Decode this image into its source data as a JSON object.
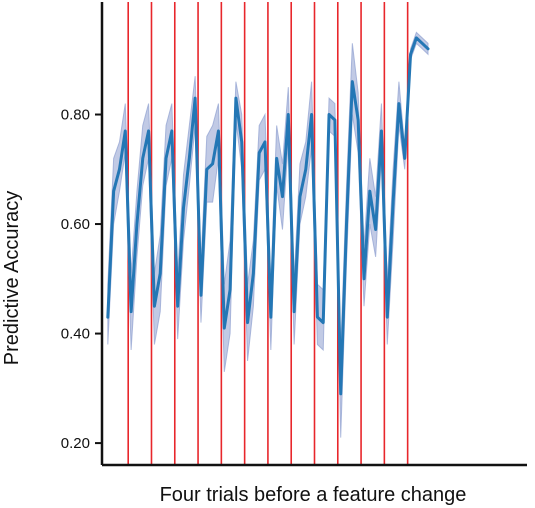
{
  "chart_data": {
    "type": "line",
    "title": "",
    "xlabel": "Four trials before a feature change",
    "ylabel": "Predictive  Accuracy",
    "ylim": [
      0.16,
      1.0
    ],
    "yticks": [
      {
        "value": 0.2,
        "label": "0.20"
      },
      {
        "value": 0.4,
        "label": "0.40"
      },
      {
        "value": 0.6,
        "label": "0.60"
      },
      {
        "value": 0.8,
        "label": "0.80"
      }
    ],
    "xlim": [
      -1,
      72
    ],
    "grid": false,
    "legend": "none",
    "colors": {
      "line": "#2477b5",
      "band": "#8e9fd0",
      "change": "#e8262b",
      "axis": "#111111"
    },
    "change_points": [
      3,
      7,
      11,
      15,
      19,
      23,
      27,
      31,
      35,
      39,
      43,
      47,
      51
    ],
    "series": [
      {
        "x": [
          0,
          1,
          2,
          3,
          4,
          5,
          6,
          7,
          8,
          9,
          10,
          11,
          12,
          13,
          14,
          15,
          16,
          17,
          18,
          19,
          20,
          21,
          22,
          23,
          24,
          25,
          26,
          27,
          28,
          29,
          30,
          31,
          32,
          33,
          34,
          35,
          36,
          37,
          38,
          39,
          40,
          41,
          42,
          43,
          44,
          45,
          46,
          47,
          48,
          49,
          50,
          51,
          52,
          53,
          54,
          55
        ],
        "values": [
          0.43,
          0.66,
          0.7,
          0.77,
          0.44,
          0.6,
          0.72,
          0.77,
          0.45,
          0.51,
          0.72,
          0.77,
          0.45,
          0.63,
          0.72,
          0.83,
          0.47,
          0.7,
          0.71,
          0.77,
          0.41,
          0.48,
          0.83,
          0.75,
          0.42,
          0.51,
          0.73,
          0.75,
          0.43,
          0.72,
          0.65,
          0.8,
          0.44,
          0.65,
          0.7,
          0.8,
          0.43,
          0.42,
          0.8,
          0.79,
          0.29,
          0.6,
          0.86,
          0.79,
          0.5,
          0.66,
          0.59,
          0.77,
          0.43,
          0.64,
          0.82,
          0.72,
          0.91,
          0.94,
          0.93,
          0.92
        ],
        "lower": [
          0.38,
          0.6,
          0.66,
          0.73,
          0.37,
          0.54,
          0.67,
          0.72,
          0.38,
          0.44,
          0.67,
          0.72,
          0.39,
          0.57,
          0.67,
          0.78,
          0.42,
          0.64,
          0.64,
          0.72,
          0.33,
          0.4,
          0.79,
          0.7,
          0.35,
          0.45,
          0.68,
          0.7,
          0.37,
          0.67,
          0.59,
          0.75,
          0.38,
          0.6,
          0.65,
          0.74,
          0.38,
          0.37,
          0.77,
          0.76,
          0.21,
          0.53,
          0.8,
          0.73,
          0.45,
          0.6,
          0.54,
          0.72,
          0.38,
          0.57,
          0.78,
          0.7,
          0.9,
          0.93,
          0.92,
          0.91
        ],
        "upper": [
          0.49,
          0.72,
          0.75,
          0.82,
          0.51,
          0.66,
          0.78,
          0.82,
          0.51,
          0.58,
          0.78,
          0.82,
          0.51,
          0.69,
          0.78,
          0.87,
          0.53,
          0.76,
          0.78,
          0.82,
          0.49,
          0.57,
          0.86,
          0.8,
          0.49,
          0.57,
          0.78,
          0.8,
          0.49,
          0.78,
          0.71,
          0.85,
          0.5,
          0.71,
          0.75,
          0.86,
          0.49,
          0.48,
          0.83,
          0.82,
          0.37,
          0.67,
          0.93,
          0.84,
          0.56,
          0.72,
          0.65,
          0.82,
          0.49,
          0.7,
          0.86,
          0.74,
          0.92,
          0.95,
          0.94,
          0.93
        ]
      }
    ]
  }
}
